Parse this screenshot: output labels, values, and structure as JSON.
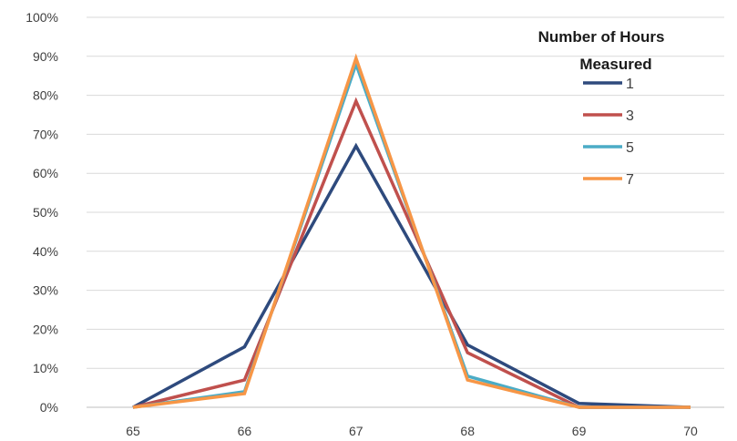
{
  "chart_data": {
    "type": "line",
    "title": "",
    "xlabel": "",
    "ylabel": "",
    "categories": [
      "65",
      "66",
      "67",
      "68",
      "69",
      "70"
    ],
    "x": [
      65,
      66,
      67,
      68,
      69,
      70
    ],
    "ylim": [
      0,
      1
    ],
    "yticks": [
      "0%",
      "10%",
      "20%",
      "30%",
      "40%",
      "50%",
      "60%",
      "70%",
      "80%",
      "90%",
      "100%"
    ],
    "grid": "horizontal",
    "legend": {
      "title_line1": "Number of Hours",
      "title_line2": "Measured",
      "placement": "top-right"
    },
    "series": [
      {
        "name": "1",
        "color": "#2E4A7D",
        "values": [
          0.0,
          0.155,
          0.67,
          0.16,
          0.01,
          0.0
        ]
      },
      {
        "name": "3",
        "color": "#C0504D",
        "values": [
          0.0,
          0.07,
          0.785,
          0.14,
          0.0,
          0.0
        ]
      },
      {
        "name": "5",
        "color": "#4BACC6",
        "values": [
          0.0,
          0.04,
          0.88,
          0.08,
          0.0,
          0.0
        ]
      },
      {
        "name": "7",
        "color": "#F79646",
        "values": [
          0.0,
          0.035,
          0.895,
          0.07,
          0.0,
          0.0
        ]
      }
    ]
  }
}
